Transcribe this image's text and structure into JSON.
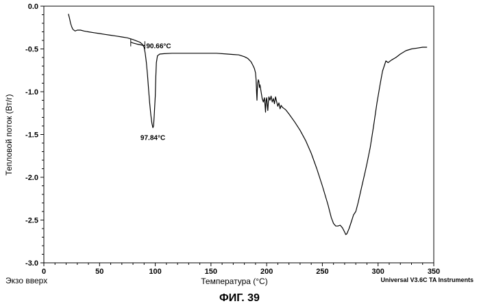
{
  "chart_data": {
    "type": "line",
    "title": "",
    "xlabel": "Температура (°C)",
    "ylabel": "Тепловой поток (Вт/г)",
    "xlim": [
      0,
      350
    ],
    "ylim": [
      -3.0,
      0.0
    ],
    "x_ticks": [
      0,
      50,
      100,
      150,
      200,
      250,
      300,
      350
    ],
    "y_ticks": [
      0.0,
      -0.5,
      -1.0,
      -1.5,
      -2.0,
      -2.5,
      -3.0
    ],
    "x_tick_labels": [
      "0",
      "50",
      "100",
      "150",
      "200",
      "250",
      "300",
      "350"
    ],
    "y_tick_labels": [
      "0.0",
      "-0.5",
      "-1.0",
      "-1.5",
      "-2.0",
      "-2.5",
      "-3.0"
    ],
    "grid": false,
    "series": [
      {
        "x": [
          22,
          23,
          24,
          25,
          26,
          28,
          30,
          33,
          36,
          40,
          45,
          50,
          55,
          60,
          65,
          70,
          75,
          80,
          84,
          86,
          88,
          90,
          91,
          92,
          93,
          94,
          95,
          96,
          97,
          97.84,
          98.5,
          99,
          100,
          100.5,
          101,
          102,
          104,
          108,
          115,
          125,
          135,
          145,
          155,
          165,
          170,
          175,
          180,
          183,
          186,
          188,
          189,
          190,
          190.5,
          191,
          191.3,
          191.6,
          192,
          192.5,
          193,
          193.5,
          194,
          195,
          196,
          197,
          198,
          198.5,
          199,
          199.5,
          200,
          200.5,
          201,
          201.5,
          202,
          203,
          204,
          205,
          206,
          207,
          208,
          209,
          210,
          211,
          212,
          213,
          214,
          215,
          217,
          220,
          225,
          230,
          235,
          240,
          245,
          250,
          255,
          258,
          260,
          262,
          264,
          266,
          268,
          270,
          271,
          272,
          274,
          276,
          278,
          280,
          282,
          285,
          288,
          290,
          293,
          296,
          299,
          302,
          304,
          306,
          307,
          309,
          312,
          316,
          320,
          325,
          330,
          335,
          340,
          344
        ],
        "y": [
          -0.09,
          -0.14,
          -0.2,
          -0.24,
          -0.27,
          -0.29,
          -0.28,
          -0.28,
          -0.29,
          -0.3,
          -0.31,
          -0.32,
          -0.33,
          -0.34,
          -0.35,
          -0.36,
          -0.37,
          -0.39,
          -0.41,
          -0.42,
          -0.44,
          -0.48,
          -0.55,
          -0.66,
          -0.8,
          -0.97,
          -1.13,
          -1.27,
          -1.37,
          -1.42,
          -1.4,
          -1.3,
          -1.05,
          -0.82,
          -0.66,
          -0.58,
          -0.56,
          -0.555,
          -0.55,
          -0.55,
          -0.55,
          -0.55,
          -0.55,
          -0.56,
          -0.565,
          -0.57,
          -0.59,
          -0.61,
          -0.65,
          -0.7,
          -0.73,
          -0.78,
          -0.86,
          -1.02,
          -1.1,
          -0.98,
          -0.9,
          -0.86,
          -0.88,
          -0.95,
          -0.92,
          -1.0,
          -1.08,
          -1.12,
          -1.07,
          -1.15,
          -1.24,
          -1.1,
          -1.07,
          -1.15,
          -1.22,
          -1.12,
          -1.06,
          -1.1,
          -1.05,
          -1.12,
          -1.08,
          -1.14,
          -1.06,
          -1.12,
          -1.17,
          -1.13,
          -1.2,
          -1.16,
          -1.18,
          -1.19,
          -1.21,
          -1.26,
          -1.35,
          -1.45,
          -1.57,
          -1.72,
          -1.9,
          -2.1,
          -2.32,
          -2.47,
          -2.54,
          -2.57,
          -2.57,
          -2.56,
          -2.59,
          -2.64,
          -2.67,
          -2.66,
          -2.6,
          -2.52,
          -2.44,
          -2.4,
          -2.3,
          -2.13,
          -1.96,
          -1.84,
          -1.65,
          -1.4,
          -1.13,
          -0.9,
          -0.76,
          -0.68,
          -0.64,
          -0.66,
          -0.63,
          -0.6,
          -0.56,
          -0.52,
          -0.5,
          -0.49,
          -0.48,
          -0.48
        ]
      },
      {
        "x": [
          78,
          80,
          84,
          88,
          90.66
        ],
        "y": [
          -0.42,
          -0.43,
          -0.445,
          -0.455,
          -0.46
        ]
      }
    ],
    "annotations": [
      {
        "text": "90.66°C",
        "x": 90.66,
        "y": -0.46
      },
      {
        "text": "97.84°C",
        "x": 97.84,
        "y": -1.42
      }
    ],
    "footer_left": "Экзо вверх",
    "footer_right": "Universal V3.6C TA Instruments",
    "caption": "ФИГ. 39"
  }
}
